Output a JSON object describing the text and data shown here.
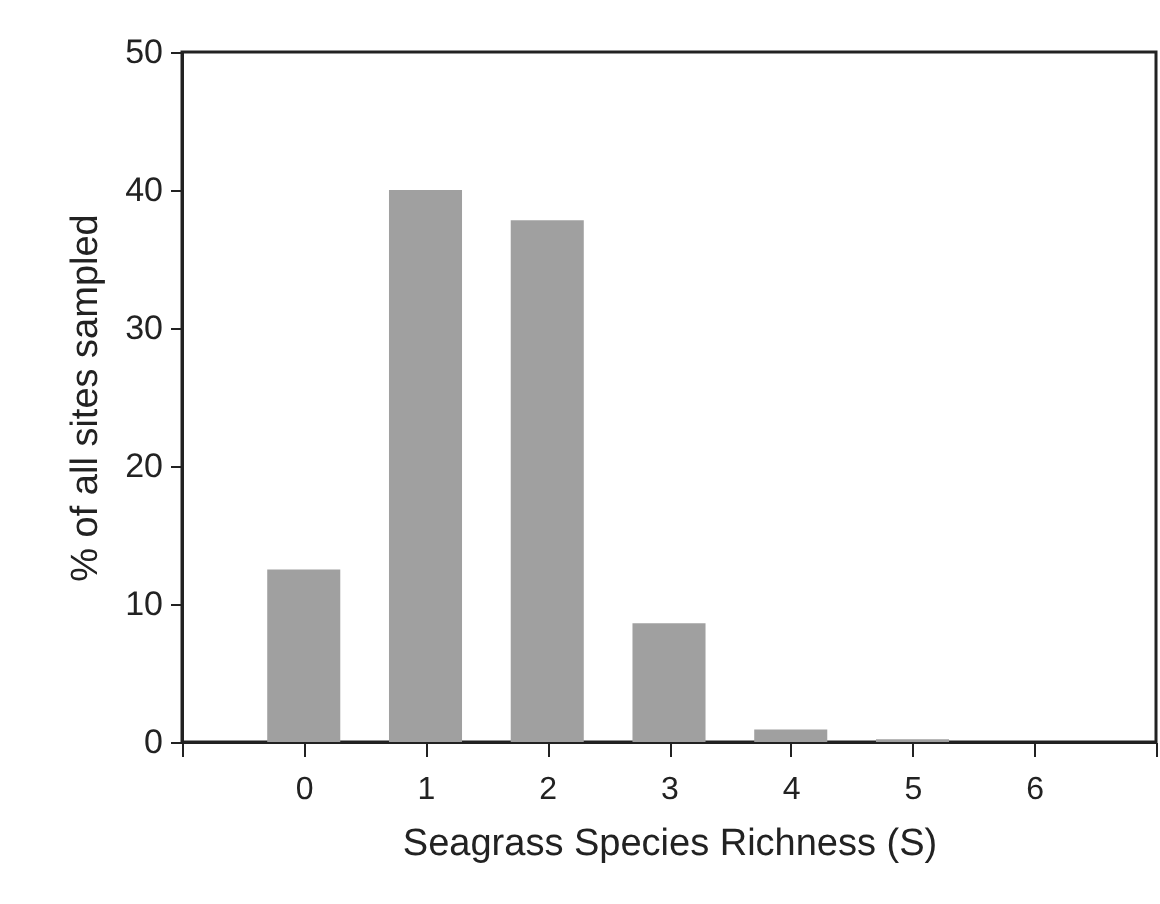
{
  "chart_data": {
    "type": "bar",
    "xlabel": "Seagrass Species Richness (S)",
    "ylabel": "% of all sites sampled",
    "x": [
      0,
      1,
      2,
      3,
      4,
      5,
      6
    ],
    "values": [
      12.5,
      40.0,
      37.8,
      8.6,
      0.9,
      0.2,
      0
    ],
    "color": "#a0a0a0",
    "xlim": [
      -1,
      7
    ],
    "xticks": [
      {
        "value": -1,
        "label": null
      },
      0,
      1,
      2,
      3,
      4,
      5,
      6,
      {
        "value": 7,
        "label": null
      }
    ],
    "ylim": [
      0,
      50
    ],
    "yticks": [
      0,
      10,
      20,
      30,
      40,
      50
    ],
    "grid": false
  }
}
